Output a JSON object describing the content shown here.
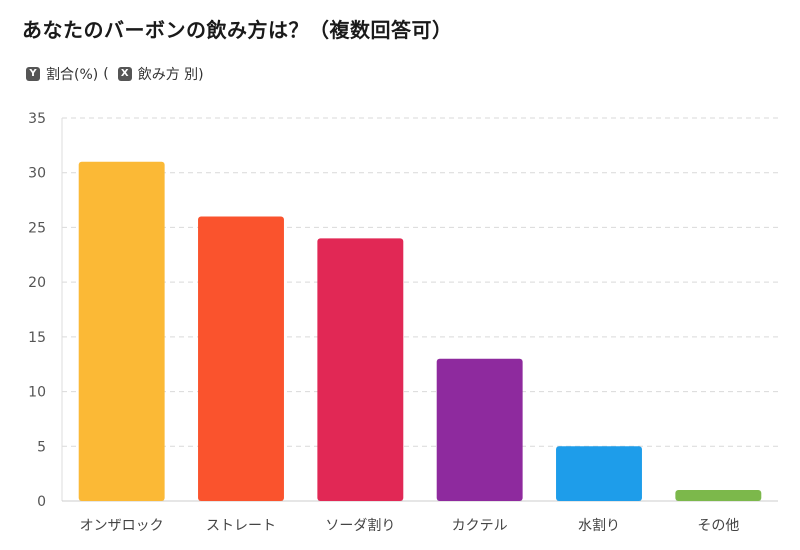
{
  "title": "あなたのバーボンの飲み方は？（複数回答可）",
  "legend": {
    "y_key": "Y",
    "y_label": "割合(%)",
    "paren_open": "(",
    "x_key": "X",
    "x_label": "飲み方 別)"
  },
  "chart_data": {
    "type": "bar",
    "title": "あなたのバーボンの飲み方は？（複数回答可）",
    "categories": [
      "オンザロック",
      "ストレート",
      "ソーダ割り",
      "カクテル",
      "水割り",
      "その他"
    ],
    "values": [
      31,
      26,
      24,
      13,
      5,
      1
    ],
    "colors": [
      "#FBB936",
      "#FA532D",
      "#E12855",
      "#8E2A9E",
      "#1E9DEA",
      "#7CB84B"
    ],
    "ylabel": "割合(%)",
    "xlabel": "飲み方 別",
    "ylim": [
      0,
      35
    ],
    "yticks": [
      0,
      5,
      10,
      15,
      20,
      25,
      30,
      35
    ],
    "grid": true
  }
}
